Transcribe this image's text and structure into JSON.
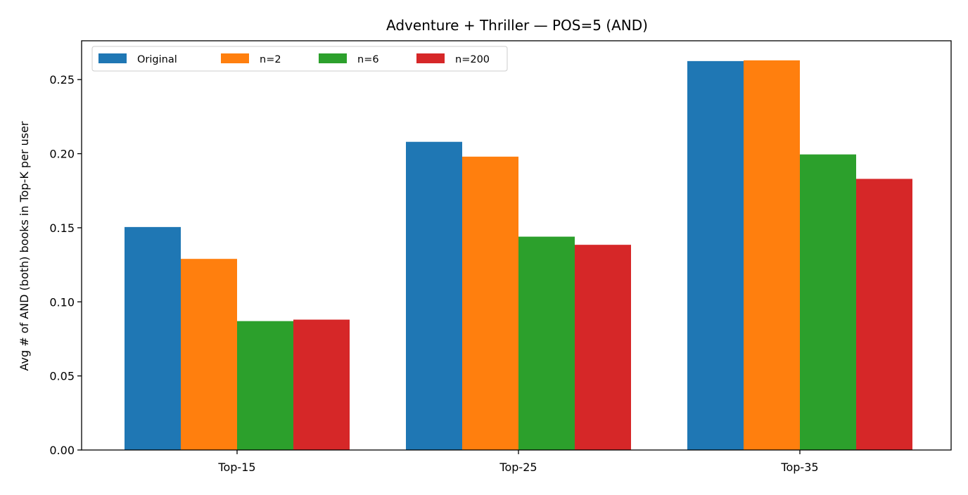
{
  "chart_data": {
    "type": "bar",
    "title": "Adventure + Thriller — POS=5 (AND)",
    "xlabel": "",
    "ylabel": "Avg # of AND (both) books in Top-K per user",
    "categories": [
      "Top-15",
      "Top-25",
      "Top-35"
    ],
    "series": [
      {
        "name": "Original",
        "color": "#1f77b4",
        "values": [
          0.1505,
          0.208,
          0.2625
        ]
      },
      {
        "name": "n=2",
        "color": "#ff7f0e",
        "values": [
          0.129,
          0.198,
          0.263
        ]
      },
      {
        "name": "n=6",
        "color": "#2ca02c",
        "values": [
          0.087,
          0.144,
          0.1995
        ]
      },
      {
        "name": "n=200",
        "color": "#d62728",
        "values": [
          0.088,
          0.1385,
          0.183
        ]
      }
    ],
    "ylim": [
      0,
      0.2762
    ],
    "yticks": [
      "0.00",
      "0.05",
      "0.10",
      "0.15",
      "0.20",
      "0.25"
    ],
    "grid": false,
    "legend": {
      "placement": "top-left",
      "columns": 4
    }
  }
}
